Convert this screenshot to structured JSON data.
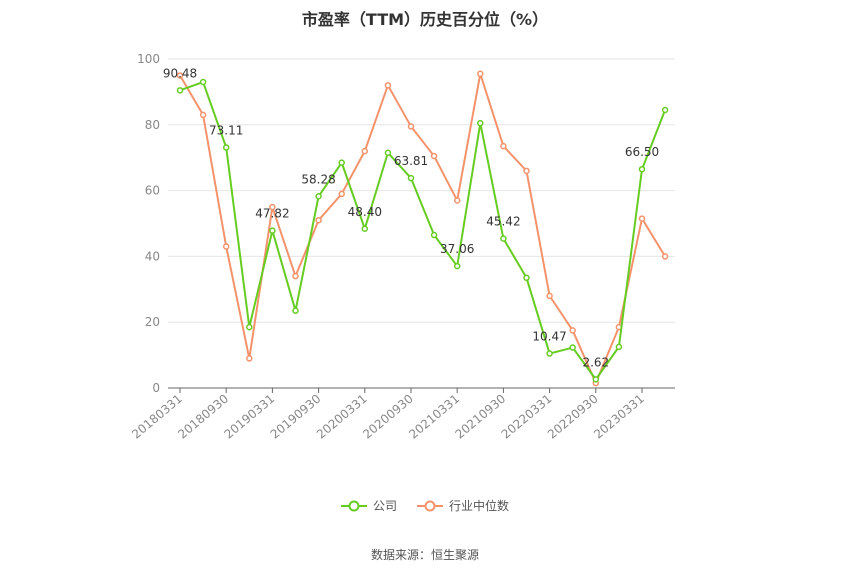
{
  "chart_data": {
    "type": "line",
    "title": "市盈率（TTM）历史百分位（%）",
    "ylim": [
      0,
      100
    ],
    "yticks": [
      0,
      20,
      40,
      60,
      80,
      100
    ],
    "x": [
      "20180331",
      "20180630",
      "20180930",
      "20181231",
      "20190331",
      "20190630",
      "20190930",
      "20191231",
      "20200331",
      "20200630",
      "20200930",
      "20201231",
      "20210331",
      "20210630",
      "20210930",
      "20211231",
      "20220331",
      "20220630",
      "20220930",
      "20221231",
      "20230331",
      "20230630"
    ],
    "xtick_labels": [
      "20180331",
      "20180930",
      "20190331",
      "20190930",
      "20200331",
      "20200930",
      "20210331",
      "20210930",
      "20220331",
      "20220930",
      "20230331"
    ],
    "series": [
      {
        "name": "公司",
        "color": "#66cc22",
        "values": [
          90.48,
          93,
          73.11,
          18.5,
          47.82,
          23.5,
          58.28,
          68.5,
          48.4,
          71.5,
          63.81,
          46.5,
          37.06,
          80.5,
          45.42,
          33.5,
          10.47,
          12.3,
          2.62,
          12.5,
          66.5,
          84.5
        ],
        "labels": {
          "0": "90.48",
          "2": "73.11",
          "4": "47.82",
          "6": "58.28",
          "8": "48.40",
          "10": "63.81",
          "12": "37.06",
          "14": "45.42",
          "16": "10.47",
          "18": "2.62",
          "20": "66.50"
        }
      },
      {
        "name": "行业中位数",
        "color": "#f4936b",
        "values": [
          95,
          83,
          43,
          9,
          55,
          34,
          51,
          59,
          72,
          92,
          79.5,
          70.5,
          57,
          95.5,
          73.5,
          66,
          28,
          17.5,
          1.5,
          18.5,
          51.5,
          40
        ]
      }
    ],
    "legend_position": "bottom",
    "grid": true
  },
  "source_text": "数据来源：恒生聚源"
}
